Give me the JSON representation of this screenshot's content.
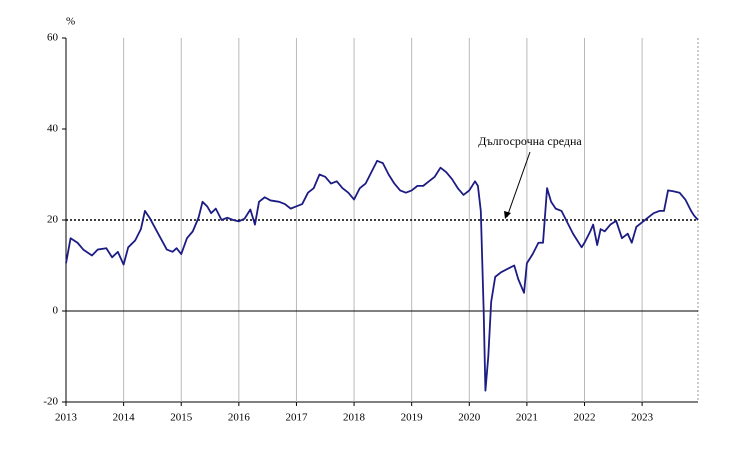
{
  "chart_data": {
    "type": "line",
    "y_unit_label": "%",
    "x": [
      2013.0,
      2013.08,
      2013.2,
      2013.3,
      2013.45,
      2013.55,
      2013.7,
      2013.8,
      2013.9,
      2014.0,
      2014.08,
      2014.2,
      2014.3,
      2014.37,
      2014.45,
      2014.6,
      2014.75,
      2014.85,
      2014.92,
      2015.0,
      2015.1,
      2015.2,
      2015.3,
      2015.37,
      2015.45,
      2015.52,
      2015.6,
      2015.7,
      2015.8,
      2015.9,
      2016.0,
      2016.1,
      2016.2,
      2016.28,
      2016.35,
      2016.45,
      2016.55,
      2016.7,
      2016.8,
      2016.9,
      2017.0,
      2017.1,
      2017.2,
      2017.3,
      2017.4,
      2017.5,
      2017.6,
      2017.7,
      2017.8,
      2017.9,
      2018.0,
      2018.1,
      2018.2,
      2018.3,
      2018.4,
      2018.5,
      2018.6,
      2018.7,
      2018.8,
      2018.9,
      2019.0,
      2019.1,
      2019.2,
      2019.3,
      2019.4,
      2019.5,
      2019.6,
      2019.7,
      2019.8,
      2019.9,
      2020.0,
      2020.1,
      2020.15,
      2020.2,
      2020.25,
      2020.28,
      2020.33,
      2020.38,
      2020.45,
      2020.55,
      2020.7,
      2020.78,
      2020.85,
      2020.95,
      2021.0,
      2021.1,
      2021.2,
      2021.28,
      2021.35,
      2021.42,
      2021.5,
      2021.6,
      2021.7,
      2021.8,
      2021.95,
      2022.0,
      2022.1,
      2022.15,
      2022.22,
      2022.28,
      2022.35,
      2022.45,
      2022.55,
      2022.65,
      2022.75,
      2022.82,
      2022.9,
      2023.0,
      2023.1,
      2023.2,
      2023.3,
      2023.38,
      2023.45,
      2023.55,
      2023.65,
      2023.75,
      2023.85,
      2023.9,
      2023.97
    ],
    "series": [
      {
        "color": "#1c1c84",
        "values": [
          10.5,
          16,
          15,
          13.5,
          12.2,
          13.5,
          13.8,
          11.8,
          13,
          10.2,
          14,
          15.5,
          18,
          22,
          20.5,
          17,
          13.5,
          13,
          13.8,
          12.5,
          16,
          17.5,
          20.5,
          24,
          23,
          21.5,
          22.5,
          20,
          20.5,
          20,
          19.7,
          20.3,
          22.3,
          19,
          24,
          25,
          24.3,
          24,
          23.5,
          22.5,
          23,
          23.5,
          26,
          27,
          30,
          29.5,
          28,
          28.5,
          27,
          26,
          24.5,
          27,
          28,
          30.5,
          33,
          32.5,
          30,
          28,
          26.5,
          26,
          26.5,
          27.5,
          27.5,
          28.5,
          29.5,
          31.5,
          30.5,
          29,
          27,
          25.5,
          26.5,
          28.5,
          27.5,
          22,
          0,
          -17.5,
          -10,
          2,
          7.5,
          8.5,
          9.5,
          10,
          7,
          4,
          10.5,
          12.5,
          15,
          15,
          27,
          24,
          22.5,
          22,
          19.5,
          17,
          14,
          15,
          17.5,
          19,
          14.5,
          18,
          17.5,
          19,
          19.8,
          16,
          17,
          15,
          18.5,
          19.5,
          20.5,
          21.5,
          22,
          22,
          26.5,
          26.3,
          26,
          24.5,
          22,
          21,
          20
        ]
      }
    ],
    "reference_line": {
      "value": 20,
      "label": "Дългосрочна средна"
    },
    "xlim": [
      2013,
      2023.97
    ],
    "xticks": [
      2013,
      2014,
      2015,
      2016,
      2017,
      2018,
      2019,
      2020,
      2021,
      2022,
      2023
    ],
    "ylim": [
      -20,
      60
    ],
    "yticks": [
      -20,
      0,
      20,
      40,
      60
    ],
    "grid": true
  }
}
